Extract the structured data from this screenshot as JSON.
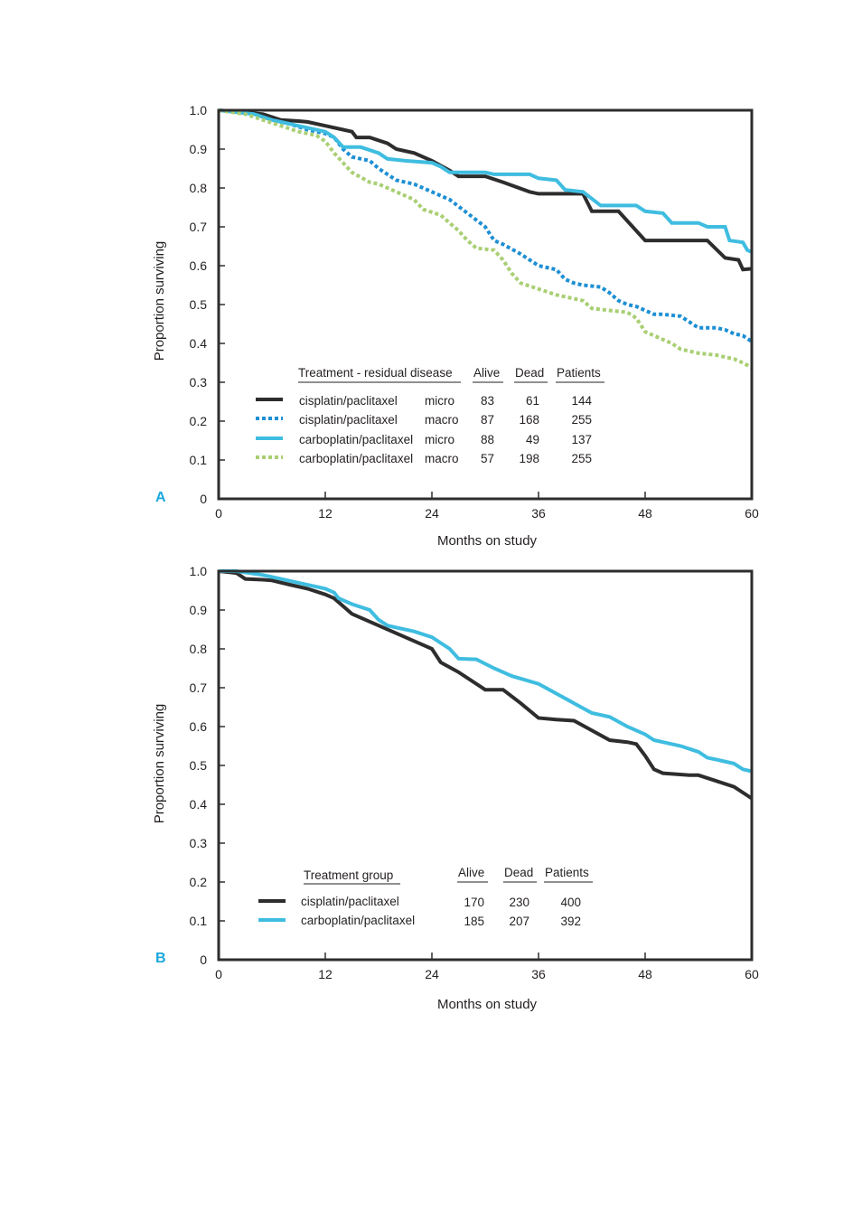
{
  "colors": {
    "cisplatin": "#2d2d2d",
    "carboplatin": "#3fbde0",
    "cisplatin_macro": "#1d8fd3",
    "carboplatin_macro": "#a9cf73",
    "panel_letter": "#1aa6dc",
    "frame": "#2d2d2d"
  },
  "chart_data": [
    {
      "type": "line",
      "panel_label": "A",
      "xlabel": "Months on study",
      "ylabel": "Proportion surviving",
      "xlim": [
        0,
        60
      ],
      "ylim": [
        0,
        1.0
      ],
      "xticks": [
        "0",
        "12",
        "24",
        "36",
        "48",
        "60"
      ],
      "yticks": [
        "0",
        "0.1",
        "0.2",
        "0.3",
        "0.4",
        "0.5",
        "0.6",
        "0.7",
        "0.8",
        "0.9",
        "1.0"
      ],
      "grid": false,
      "legend_placement": "lower-left",
      "legend_headers": {
        "treatment": "Treatment - residual disease",
        "alive": "Alive",
        "dead": "Dead",
        "patients": "Patients"
      },
      "series": [
        {
          "name": "cisplatin/paclitaxel",
          "residual": "micro",
          "alive": "83",
          "dead": "61",
          "patients": "144",
          "color": "#2d2d2d",
          "dashed": false,
          "points": [
            [
              0,
              1.0
            ],
            [
              5,
              0.99
            ],
            [
              7,
              0.975
            ],
            [
              9,
              0.972
            ],
            [
              10,
              0.97
            ],
            [
              12,
              0.96
            ],
            [
              14,
              0.95
            ],
            [
              15,
              0.945
            ],
            [
              15.5,
              0.93
            ],
            [
              17,
              0.93
            ],
            [
              19,
              0.915
            ],
            [
              20,
              0.9
            ],
            [
              22,
              0.89
            ],
            [
              24,
              0.87
            ],
            [
              26,
              0.845
            ],
            [
              27,
              0.83
            ],
            [
              30,
              0.83
            ],
            [
              32,
              0.815
            ],
            [
              35,
              0.79
            ],
            [
              36,
              0.785
            ],
            [
              38,
              0.785
            ],
            [
              41,
              0.785
            ],
            [
              42,
              0.74
            ],
            [
              45,
              0.74
            ],
            [
              48,
              0.665
            ],
            [
              50,
              0.665
            ],
            [
              52,
              0.665
            ],
            [
              54,
              0.665
            ],
            [
              55,
              0.665
            ],
            [
              57,
              0.62
            ],
            [
              58.5,
              0.615
            ],
            [
              59,
              0.59
            ],
            [
              60,
              0.592
            ]
          ]
        },
        {
          "name": "cisplatin/paclitaxel",
          "residual": "macro",
          "alive": "87",
          "dead": "168",
          "patients": "255",
          "color": "#1d8fd3",
          "dashed": true,
          "points": [
            [
              0,
              1.0
            ],
            [
              4,
              0.99
            ],
            [
              6,
              0.975
            ],
            [
              8,
              0.965
            ],
            [
              10,
              0.95
            ],
            [
              12,
              0.94
            ],
            [
              13,
              0.93
            ],
            [
              14,
              0.9
            ],
            [
              15,
              0.88
            ],
            [
              17,
              0.87
            ],
            [
              18,
              0.85
            ],
            [
              20,
              0.82
            ],
            [
              22,
              0.81
            ],
            [
              24,
              0.79
            ],
            [
              26,
              0.77
            ],
            [
              28,
              0.735
            ],
            [
              30,
              0.7
            ],
            [
              31,
              0.665
            ],
            [
              32,
              0.655
            ],
            [
              34,
              0.63
            ],
            [
              36,
              0.6
            ],
            [
              38,
              0.59
            ],
            [
              39,
              0.565
            ],
            [
              40,
              0.555
            ],
            [
              41,
              0.55
            ],
            [
              43,
              0.545
            ],
            [
              44,
              0.53
            ],
            [
              45,
              0.51
            ],
            [
              46,
              0.5
            ],
            [
              47,
              0.495
            ],
            [
              48,
              0.485
            ],
            [
              49,
              0.475
            ],
            [
              50,
              0.475
            ],
            [
              52,
              0.47
            ],
            [
              53,
              0.455
            ],
            [
              54,
              0.44
            ],
            [
              56,
              0.44
            ],
            [
              57,
              0.435
            ],
            [
              58,
              0.425
            ],
            [
              59,
              0.42
            ],
            [
              60,
              0.405
            ]
          ]
        },
        {
          "name": "carboplatin/paclitaxel",
          "residual": "micro",
          "alive": "88",
          "dead": "49",
          "patients": "137",
          "color": "#3fbde0",
          "dashed": false,
          "points": [
            [
              0,
              1.0
            ],
            [
              4,
              0.99
            ],
            [
              6,
              0.975
            ],
            [
              8,
              0.965
            ],
            [
              10,
              0.955
            ],
            [
              12,
              0.945
            ],
            [
              13,
              0.93
            ],
            [
              14,
              0.905
            ],
            [
              16,
              0.905
            ],
            [
              18,
              0.89
            ],
            [
              19,
              0.875
            ],
            [
              21,
              0.87
            ],
            [
              24,
              0.865
            ],
            [
              25,
              0.855
            ],
            [
              26,
              0.84
            ],
            [
              30,
              0.84
            ],
            [
              31,
              0.835
            ],
            [
              35,
              0.835
            ],
            [
              36,
              0.825
            ],
            [
              38,
              0.82
            ],
            [
              39,
              0.795
            ],
            [
              41,
              0.79
            ],
            [
              43,
              0.755
            ],
            [
              47,
              0.755
            ],
            [
              48,
              0.74
            ],
            [
              50,
              0.735
            ],
            [
              51,
              0.71
            ],
            [
              52,
              0.71
            ],
            [
              54,
              0.71
            ],
            [
              55,
              0.7
            ],
            [
              57,
              0.7
            ],
            [
              57.5,
              0.665
            ],
            [
              59,
              0.66
            ],
            [
              59.5,
              0.64
            ],
            [
              60,
              0.635
            ]
          ]
        },
        {
          "name": "carboplatin/paclitaxel",
          "residual": "macro",
          "alive": "57",
          "dead": "198",
          "patients": "255",
          "color": "#a9cf73",
          "dashed": true,
          "points": [
            [
              0,
              1.0
            ],
            [
              3,
              0.99
            ],
            [
              5,
              0.975
            ],
            [
              7,
              0.96
            ],
            [
              9,
              0.945
            ],
            [
              11,
              0.935
            ],
            [
              12,
              0.92
            ],
            [
              13,
              0.89
            ],
            [
              14,
              0.865
            ],
            [
              15,
              0.84
            ],
            [
              17,
              0.815
            ],
            [
              18,
              0.81
            ],
            [
              20,
              0.79
            ],
            [
              22,
              0.77
            ],
            [
              23,
              0.745
            ],
            [
              25,
              0.73
            ],
            [
              27,
              0.69
            ],
            [
              28,
              0.665
            ],
            [
              29,
              0.645
            ],
            [
              31,
              0.64
            ],
            [
              32,
              0.615
            ],
            [
              33,
              0.58
            ],
            [
              34,
              0.555
            ],
            [
              36,
              0.54
            ],
            [
              38,
              0.525
            ],
            [
              40,
              0.515
            ],
            [
              41,
              0.51
            ],
            [
              42,
              0.49
            ],
            [
              44,
              0.485
            ],
            [
              46,
              0.48
            ],
            [
              47,
              0.465
            ],
            [
              48,
              0.43
            ],
            [
              50,
              0.41
            ],
            [
              51,
              0.4
            ],
            [
              52,
              0.385
            ],
            [
              54,
              0.375
            ],
            [
              56,
              0.37
            ],
            [
              57,
              0.365
            ],
            [
              58,
              0.36
            ],
            [
              59,
              0.35
            ],
            [
              60,
              0.338
            ]
          ]
        }
      ]
    },
    {
      "type": "line",
      "panel_label": "B",
      "xlabel": "Months on study",
      "ylabel": "Proportion surviving",
      "xlim": [
        0,
        60
      ],
      "ylim": [
        0,
        1.0
      ],
      "xticks": [
        "0",
        "12",
        "24",
        "36",
        "48",
        "60"
      ],
      "yticks": [
        "0",
        "0.1",
        "0.2",
        "0.3",
        "0.4",
        "0.5",
        "0.6",
        "0.7",
        "0.8",
        "0.9",
        "1.0"
      ],
      "grid": false,
      "legend_placement": "lower-left",
      "legend_headers": {
        "treatment": "Treatment group",
        "alive": "Alive",
        "dead": "Dead",
        "patients": "Patients"
      },
      "series": [
        {
          "name": "cisplatin/paclitaxel",
          "alive": "170",
          "dead": "230",
          "patients": "400",
          "color": "#2d2d2d",
          "dashed": false,
          "points": [
            [
              0,
              1.0
            ],
            [
              2,
              0.995
            ],
            [
              3,
              0.98
            ],
            [
              5,
              0.978
            ],
            [
              6,
              0.976
            ],
            [
              8,
              0.965
            ],
            [
              10,
              0.955
            ],
            [
              12,
              0.94
            ],
            [
              13,
              0.93
            ],
            [
              14,
              0.91
            ],
            [
              15,
              0.89
            ],
            [
              18,
              0.86
            ],
            [
              20,
              0.84
            ],
            [
              23,
              0.81
            ],
            [
              24,
              0.8
            ],
            [
              25,
              0.765
            ],
            [
              27,
              0.74
            ],
            [
              30,
              0.695
            ],
            [
              32,
              0.695
            ],
            [
              34,
              0.66
            ],
            [
              36,
              0.622
            ],
            [
              38,
              0.618
            ],
            [
              40,
              0.615
            ],
            [
              42,
              0.59
            ],
            [
              44,
              0.565
            ],
            [
              46,
              0.56
            ],
            [
              47,
              0.555
            ],
            [
              48,
              0.525
            ],
            [
              49,
              0.49
            ],
            [
              50,
              0.48
            ],
            [
              53,
              0.475
            ],
            [
              54,
              0.475
            ],
            [
              56,
              0.46
            ],
            [
              58,
              0.445
            ],
            [
              60,
              0.415
            ]
          ]
        },
        {
          "name": "carboplatin/paclitaxel",
          "alive": "185",
          "dead": "207",
          "patients": "392",
          "color": "#3fbde0",
          "dashed": false,
          "points": [
            [
              0,
              1.0
            ],
            [
              2,
              1.0
            ],
            [
              5,
              0.99
            ],
            [
              7,
              0.98
            ],
            [
              9,
              0.97
            ],
            [
              12,
              0.955
            ],
            [
              13,
              0.945
            ],
            [
              13.5,
              0.93
            ],
            [
              15,
              0.915
            ],
            [
              17,
              0.9
            ],
            [
              18,
              0.875
            ],
            [
              19,
              0.86
            ],
            [
              20,
              0.855
            ],
            [
              22,
              0.845
            ],
            [
              24,
              0.83
            ],
            [
              26,
              0.8
            ],
            [
              27,
              0.775
            ],
            [
              29,
              0.773
            ],
            [
              31,
              0.75
            ],
            [
              33,
              0.73
            ],
            [
              36,
              0.71
            ],
            [
              38,
              0.685
            ],
            [
              40,
              0.66
            ],
            [
              42,
              0.635
            ],
            [
              44,
              0.625
            ],
            [
              46,
              0.6
            ],
            [
              48,
              0.58
            ],
            [
              49,
              0.565
            ],
            [
              50,
              0.56
            ],
            [
              52,
              0.55
            ],
            [
              54,
              0.535
            ],
            [
              55,
              0.52
            ],
            [
              56,
              0.515
            ],
            [
              58,
              0.505
            ],
            [
              59,
              0.49
            ],
            [
              60,
              0.485
            ]
          ]
        }
      ]
    }
  ]
}
